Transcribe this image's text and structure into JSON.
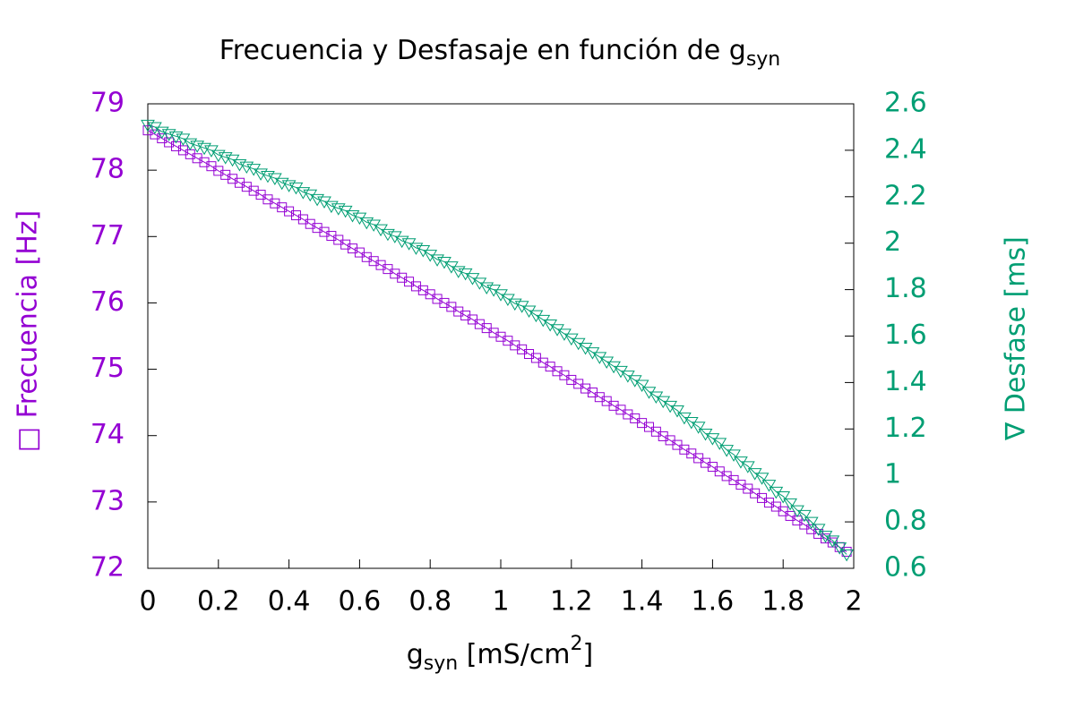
{
  "chart_data": {
    "type": "scatter",
    "title": [
      "Frecuencia y Desfasaje en función de g",
      "syn"
    ],
    "xlabel": [
      "g",
      "syn",
      " [mS/cm",
      "2",
      "]"
    ],
    "ylabel": "□ Frecuencia  [Hz]",
    "y2label": "∇ Desfase [ms]",
    "xlim": [
      0,
      2
    ],
    "xticks": [
      0,
      0.2,
      0.4,
      0.6,
      0.8,
      1,
      1.2,
      1.4,
      1.6,
      1.8,
      2
    ],
    "ylim": [
      72,
      79
    ],
    "yticks": [
      72,
      73,
      74,
      75,
      76,
      77,
      78,
      79
    ],
    "y2lim": [
      0.6,
      2.6
    ],
    "y2ticks": [
      0.6,
      0.8,
      1,
      1.2,
      1.4,
      1.6,
      1.8,
      2,
      2.2,
      2.4,
      2.6
    ],
    "ycolor": "#9400d3",
    "y2color": "#009e73",
    "x": [
      0,
      0.02,
      0.04,
      0.06,
      0.08,
      0.1,
      0.12,
      0.14,
      0.16,
      0.18,
      0.2,
      0.22,
      0.24,
      0.26,
      0.28,
      0.3,
      0.32,
      0.34,
      0.36,
      0.38,
      0.4,
      0.42,
      0.44,
      0.46,
      0.48,
      0.5,
      0.52,
      0.54,
      0.56,
      0.58,
      0.6,
      0.62,
      0.64,
      0.66,
      0.68,
      0.7,
      0.72,
      0.74,
      0.76,
      0.78,
      0.8,
      0.82,
      0.84,
      0.86,
      0.88,
      0.9,
      0.92,
      0.94,
      0.96,
      0.98,
      1,
      1.02,
      1.04,
      1.06,
      1.08,
      1.1,
      1.12,
      1.14,
      1.16,
      1.18,
      1.2,
      1.22,
      1.24,
      1.26,
      1.28,
      1.3,
      1.32,
      1.34,
      1.36,
      1.38,
      1.4,
      1.42,
      1.44,
      1.46,
      1.48,
      1.5,
      1.52,
      1.54,
      1.56,
      1.58,
      1.6,
      1.62,
      1.64,
      1.66,
      1.68,
      1.7,
      1.72,
      1.74,
      1.76,
      1.78,
      1.8,
      1.82,
      1.84,
      1.86,
      1.88,
      1.9,
      1.92,
      1.94,
      1.96,
      1.98
    ],
    "series": [
      {
        "marker": "square",
        "color": "#9400d3",
        "values": [
          78.6,
          78.54,
          78.48,
          78.42,
          78.36,
          78.3,
          78.24,
          78.18,
          78.12,
          78.06,
          77.99,
          77.93,
          77.87,
          77.81,
          77.75,
          77.69,
          77.63,
          77.56,
          77.5,
          77.44,
          77.38,
          77.32,
          77.26,
          77.19,
          77.13,
          77.07,
          77.01,
          76.95,
          76.88,
          76.82,
          76.76,
          76.69,
          76.63,
          76.57,
          76.51,
          76.44,
          76.38,
          76.32,
          76.25,
          76.19,
          76.13,
          76.06,
          76.0,
          75.94,
          75.87,
          75.81,
          75.75,
          75.68,
          75.62,
          75.55,
          75.49,
          75.43,
          75.36,
          75.3,
          75.23,
          75.17,
          75.1,
          75.04,
          74.97,
          74.91,
          74.84,
          74.78,
          74.71,
          74.65,
          74.58,
          74.52,
          74.45,
          74.39,
          74.32,
          74.26,
          74.19,
          74.13,
          74.06,
          73.99,
          73.93,
          73.86,
          73.79,
          73.73,
          73.66,
          73.59,
          73.53,
          73.46,
          73.39,
          73.33,
          73.26,
          73.2,
          73.13,
          73.06,
          72.99,
          72.93,
          72.86,
          72.79,
          72.72,
          72.66,
          72.59,
          72.52,
          72.45,
          72.39,
          72.32,
          72.25
        ]
      },
      {
        "marker": "triangle-down",
        "color": "#009e73",
        "axis": "y2",
        "values": [
          2.51,
          2.5,
          2.48,
          2.47,
          2.46,
          2.45,
          2.43,
          2.42,
          2.41,
          2.4,
          2.38,
          2.37,
          2.36,
          2.34,
          2.33,
          2.32,
          2.3,
          2.29,
          2.28,
          2.26,
          2.25,
          2.24,
          2.22,
          2.21,
          2.19,
          2.18,
          2.16,
          2.15,
          2.14,
          2.12,
          2.11,
          2.09,
          2.08,
          2.06,
          2.04,
          2.03,
          2.01,
          2.0,
          1.98,
          1.97,
          1.95,
          1.93,
          1.92,
          1.9,
          1.88,
          1.87,
          1.85,
          1.83,
          1.81,
          1.8,
          1.78,
          1.76,
          1.74,
          1.73,
          1.71,
          1.69,
          1.67,
          1.65,
          1.63,
          1.61,
          1.59,
          1.57,
          1.55,
          1.53,
          1.51,
          1.49,
          1.47,
          1.45,
          1.43,
          1.41,
          1.39,
          1.36,
          1.34,
          1.32,
          1.3,
          1.28,
          1.25,
          1.23,
          1.21,
          1.18,
          1.16,
          1.14,
          1.11,
          1.09,
          1.06,
          1.04,
          1.01,
          0.99,
          0.96,
          0.93,
          0.91,
          0.88,
          0.85,
          0.83,
          0.8,
          0.77,
          0.74,
          0.72,
          0.69,
          0.66
        ]
      }
    ]
  }
}
